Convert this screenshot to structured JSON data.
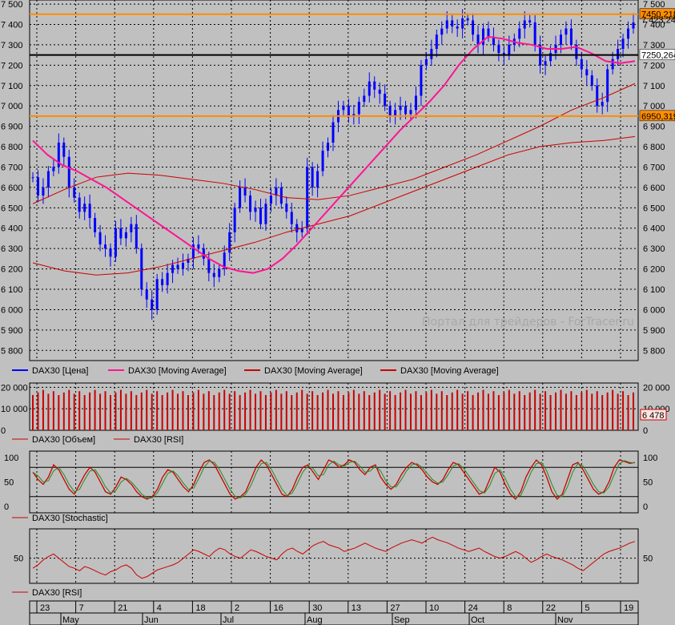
{
  "chart_data": [
    {
      "type": "candlestick",
      "panel": "price",
      "ylim": [
        5750,
        7520
      ],
      "y_ticks": [
        "5 800",
        "5 900",
        "6 000",
        "6 100",
        "6 200",
        "6 300",
        "6 400",
        "6 500",
        "6 600",
        "6 700",
        "6 800",
        "6 900",
        "7 000",
        "7 100",
        "7 200",
        "7 300",
        "7 400",
        "7 500"
      ],
      "y_tick_values": [
        5800,
        5900,
        6000,
        6100,
        6200,
        6300,
        6400,
        6500,
        6600,
        6700,
        6800,
        6900,
        7000,
        7100,
        7200,
        7300,
        7400,
        7500
      ],
      "close_series": [
        6650,
        6560,
        6600,
        6680,
        6700,
        6820,
        6750,
        6600,
        6550,
        6480,
        6520,
        6450,
        6380,
        6320,
        6300,
        6260,
        6400,
        6350,
        6380,
        6420,
        6300,
        6100,
        6050,
        6000,
        6150,
        6120,
        6180,
        6220,
        6200,
        6230,
        6250,
        6320,
        6300,
        6250,
        6180,
        6160,
        6200,
        6280,
        6380,
        6500,
        6600,
        6560,
        6480,
        6500,
        6420,
        6520,
        6560,
        6600,
        6520,
        6480,
        6420,
        6380,
        6400,
        6700,
        6600,
        6680,
        6780,
        6820,
        6920,
        6980,
        7000,
        6950,
        6960,
        7020,
        7050,
        7120,
        7080,
        7060,
        7000,
        6950,
        6980,
        7000,
        6960,
        6980,
        7050,
        7200,
        7230,
        7280,
        7350,
        7380,
        7420,
        7390,
        7380,
        7430,
        7420,
        7350,
        7300,
        7380,
        7340,
        7300,
        7260,
        7250,
        7300,
        7330,
        7380,
        7420,
        7410,
        7300,
        7200,
        7220,
        7260,
        7300,
        7350,
        7380,
        7300,
        7230,
        7180,
        7150,
        7100,
        7000,
        7020,
        7180,
        7230,
        7280,
        7330,
        7380,
        7410
      ],
      "moving_averages": {
        "short": [
          6830,
          6760,
          6710,
          6680,
          6640,
          6600,
          6550,
          6500,
          6450,
          6400,
          6350,
          6300,
          6250,
          6210,
          6190,
          6180,
          6200,
          6250,
          6320,
          6400,
          6480,
          6560,
          6640,
          6720,
          6800,
          6880,
          6950,
          7020,
          7100,
          7200,
          7280,
          7340,
          7330,
          7310,
          7300,
          7280,
          7280,
          7290,
          7260,
          7220,
          7210,
          7220
        ],
        "medium": [
          6520,
          6590,
          6650,
          6670,
          6660,
          6640,
          6620,
          6590,
          6550,
          6540,
          6560,
          6600,
          6640,
          6700,
          6760,
          6830,
          6900,
          6980,
          7040,
          7110
        ],
        "long": [
          6230,
          6190,
          6170,
          6180,
          6210,
          6250,
          6290,
          6330,
          6380,
          6420,
          6460,
          6520,
          6580,
          6640,
          6700,
          6760,
          6800,
          6820,
          6830,
          6850
        ]
      },
      "horizontal_levels": [
        {
          "value": 7450.218,
          "label": "7450,218",
          "color": "#ff8c00"
        },
        {
          "value": 7250.264,
          "label": "7250,264",
          "color": "#000000"
        },
        {
          "value": 6950.319,
          "label": "6950,319",
          "color": "#ff8c00"
        }
      ],
      "current_label": "7 423,24",
      "watermark": "Портал для трейдеров - ForTracer.ru",
      "colors": {
        "candles": "#0000ff",
        "ma_short": "#ff1493",
        "ma_other": "#cc0000"
      }
    },
    {
      "type": "bar",
      "panel": "volume",
      "ylim": [
        0,
        22000
      ],
      "y_ticks": [
        "20 000",
        "10 000",
        "0"
      ],
      "y_tick_values": [
        20000,
        10000,
        0
      ],
      "values_description_level": 20000,
      "current_value_label": "6 478",
      "rsi_mid_label": "10 000"
    },
    {
      "type": "line",
      "panel": "stochastic",
      "ylim": [
        0,
        100
      ],
      "y_ticks": [
        "100",
        "50",
        "0"
      ],
      "y_tick_values": [
        100,
        50,
        0
      ],
      "levels": [
        80,
        20
      ],
      "values": [
        70,
        55,
        45,
        60,
        85,
        75,
        55,
        35,
        25,
        45,
        65,
        80,
        70,
        50,
        30,
        25,
        40,
        60,
        55,
        45,
        30,
        20,
        15,
        20,
        35,
        60,
        75,
        70,
        55,
        40,
        30,
        45,
        70,
        90,
        95,
        85,
        65,
        45,
        25,
        15,
        20,
        30,
        55,
        80,
        95,
        85,
        65,
        45,
        25,
        20,
        35,
        60,
        80,
        85,
        70,
        55,
        75,
        95,
        90,
        80,
        85,
        95,
        90,
        75,
        65,
        80,
        85,
        60,
        45,
        35,
        45,
        65,
        80,
        90,
        85,
        75,
        60,
        50,
        45,
        55,
        75,
        90,
        85,
        70,
        55,
        40,
        25,
        30,
        55,
        80,
        70,
        45,
        25,
        15,
        30,
        60,
        80,
        95,
        85,
        60,
        30,
        15,
        25,
        55,
        85,
        90,
        75,
        55,
        35,
        25,
        30,
        50,
        80,
        95,
        92,
        88,
        90
      ]
    },
    {
      "type": "line",
      "panel": "rsi",
      "ylim": [
        20,
        85
      ],
      "y_ticks": [
        "50"
      ],
      "y_tick_values": [
        50
      ],
      "values": [
        38,
        42,
        48,
        52,
        55,
        50,
        45,
        40,
        38,
        35,
        40,
        38,
        35,
        32,
        30,
        34,
        36,
        40,
        42,
        38,
        30,
        26,
        28,
        32,
        36,
        38,
        40,
        42,
        45,
        50,
        55,
        60,
        58,
        55,
        52,
        58,
        62,
        60,
        55,
        52,
        50,
        55,
        60,
        58,
        55,
        52,
        50,
        48,
        55,
        60,
        62,
        58,
        55,
        60,
        65,
        68,
        70,
        66,
        64,
        62,
        58,
        60,
        62,
        65,
        68,
        65,
        62,
        60,
        58,
        62,
        65,
        68,
        70,
        72,
        70,
        68,
        72,
        75,
        72,
        70,
        68,
        65,
        62,
        60,
        58,
        60,
        62,
        58,
        55,
        52,
        50,
        52,
        55,
        58,
        55,
        50,
        45,
        48,
        52,
        55,
        52,
        50,
        48,
        45,
        42,
        38,
        35,
        40,
        45,
        50,
        55,
        58,
        60,
        62,
        65,
        68,
        70
      ]
    }
  ],
  "legends": {
    "price": [
      {
        "label": "DAX30 [Цена]",
        "color": "#0000ff"
      },
      {
        "label": "DAX30 [Moving Average]",
        "color": "#ff1493"
      },
      {
        "label": "DAX30 [Moving Average]",
        "color": "#cc0000"
      },
      {
        "label": "DAX30 [Moving Average]",
        "color": "#cc0000"
      }
    ],
    "volume": [
      {
        "label": "DAX30 [Объем]",
        "color": "#cc0000"
      },
      {
        "label": "DAX30 [RSI]",
        "color": "#cc0000"
      }
    ],
    "stochastic": [
      {
        "label": "DAX30 [Stochastic]",
        "color": "#cc0000"
      }
    ],
    "rsi": [
      {
        "label": "DAX30 [RSI]",
        "color": "#cc0000"
      }
    ]
  },
  "x_axis": {
    "day_labels": [
      "23",
      "7",
      "21",
      "4",
      "18",
      "2",
      "16",
      "30",
      "13",
      "27",
      "10",
      "24",
      "8",
      "22",
      "5",
      "19"
    ],
    "month_labels": [
      "May",
      "Jun",
      "Jul",
      "Aug",
      "Sep",
      "Oct",
      "Nov"
    ]
  }
}
